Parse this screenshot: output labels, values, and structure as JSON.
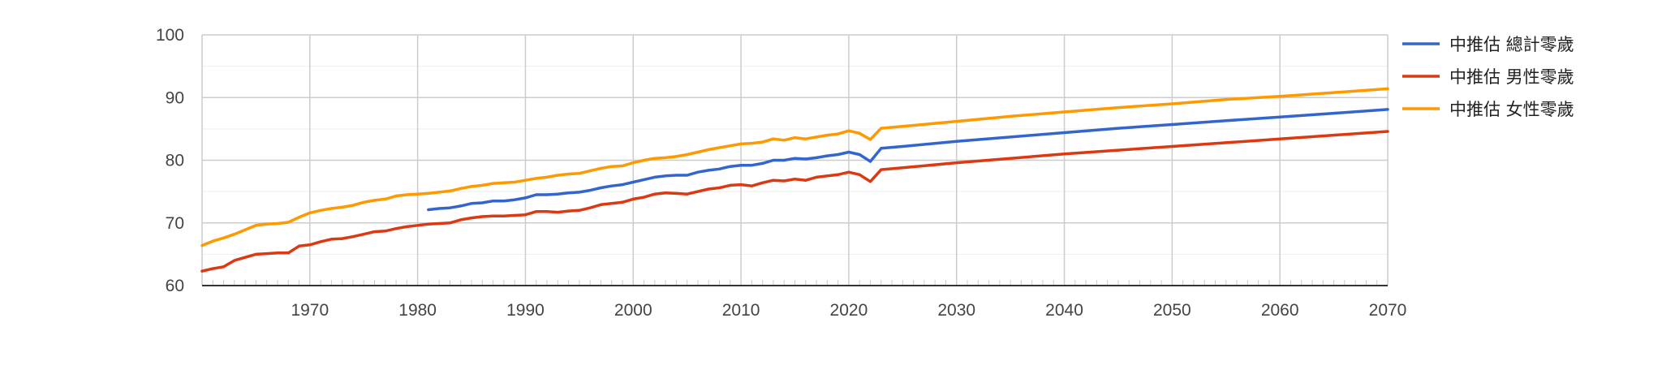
{
  "chart_data": {
    "type": "line",
    "title": "",
    "xlabel": "",
    "ylabel": "",
    "xlim": [
      1960,
      2070
    ],
    "ylim": [
      60,
      100
    ],
    "x_ticks": [
      1970,
      1980,
      1990,
      2000,
      2010,
      2020,
      2030,
      2040,
      2050,
      2060,
      2070
    ],
    "x_tick_labels": [
      "1970",
      "1980",
      "1990",
      "2000",
      "2010",
      "2020",
      "2030",
      "2040",
      "2050",
      "2060",
      "2070"
    ],
    "y_ticks": [
      60,
      70,
      80,
      90,
      100
    ],
    "y_tick_labels": [
      "60",
      "70",
      "80",
      "90",
      "100"
    ],
    "grid": true,
    "legend_position": "right",
    "series": [
      {
        "name": "中推估 總計零歲",
        "color": "#3366cc",
        "x": [
          1981,
          1982,
          1983,
          1984,
          1985,
          1986,
          1987,
          1988,
          1989,
          1990,
          1991,
          1992,
          1993,
          1994,
          1995,
          1996,
          1997,
          1998,
          1999,
          2000,
          2001,
          2002,
          2003,
          2004,
          2005,
          2006,
          2007,
          2008,
          2009,
          2010,
          2011,
          2012,
          2013,
          2014,
          2015,
          2016,
          2017,
          2018,
          2019,
          2020,
          2021,
          2022,
          2023,
          2025,
          2030,
          2035,
          2040,
          2045,
          2050,
          2055,
          2060,
          2065,
          2070
        ],
        "y": [
          72.1,
          72.3,
          72.4,
          72.7,
          73.1,
          73.2,
          73.5,
          73.5,
          73.7,
          74.0,
          74.5,
          74.5,
          74.6,
          74.8,
          74.9,
          75.2,
          75.6,
          75.9,
          76.1,
          76.5,
          76.9,
          77.3,
          77.5,
          77.6,
          77.6,
          78.1,
          78.4,
          78.6,
          79.0,
          79.2,
          79.2,
          79.5,
          80.0,
          80.0,
          80.3,
          80.2,
          80.4,
          80.7,
          80.9,
          81.3,
          80.9,
          79.8,
          81.9,
          82.2,
          83.0,
          83.7,
          84.4,
          85.1,
          85.7,
          86.3,
          86.9,
          87.5,
          88.1
        ]
      },
      {
        "name": "中推估 男性零歲",
        "color": "#dc3912",
        "x": [
          1960,
          1961,
          1962,
          1963,
          1964,
          1965,
          1966,
          1967,
          1968,
          1969,
          1970,
          1971,
          1972,
          1973,
          1974,
          1975,
          1976,
          1977,
          1978,
          1979,
          1980,
          1981,
          1982,
          1983,
          1984,
          1985,
          1986,
          1987,
          1988,
          1989,
          1990,
          1991,
          1992,
          1993,
          1994,
          1995,
          1996,
          1997,
          1998,
          1999,
          2000,
          2001,
          2002,
          2003,
          2004,
          2005,
          2006,
          2007,
          2008,
          2009,
          2010,
          2011,
          2012,
          2013,
          2014,
          2015,
          2016,
          2017,
          2018,
          2019,
          2020,
          2021,
          2022,
          2023,
          2025,
          2030,
          2035,
          2040,
          2045,
          2050,
          2055,
          2060,
          2065,
          2070
        ],
        "y": [
          62.3,
          62.7,
          63.0,
          64.0,
          64.5,
          65.0,
          65.1,
          65.2,
          65.2,
          66.3,
          66.5,
          67.0,
          67.4,
          67.5,
          67.8,
          68.2,
          68.6,
          68.7,
          69.1,
          69.4,
          69.6,
          69.8,
          69.9,
          70.0,
          70.5,
          70.8,
          71.0,
          71.1,
          71.1,
          71.2,
          71.3,
          71.8,
          71.8,
          71.7,
          71.9,
          72.0,
          72.4,
          72.9,
          73.1,
          73.3,
          73.8,
          74.1,
          74.6,
          74.8,
          74.7,
          74.6,
          75.0,
          75.4,
          75.6,
          76.0,
          76.1,
          75.9,
          76.4,
          76.8,
          76.7,
          77.0,
          76.8,
          77.3,
          77.5,
          77.7,
          78.1,
          77.7,
          76.6,
          78.5,
          78.8,
          79.6,
          80.3,
          81.0,
          81.6,
          82.2,
          82.8,
          83.4,
          84.0,
          84.6
        ]
      },
      {
        "name": "中推估 女性零歲",
        "color": "#ff9900",
        "x": [
          1960,
          1961,
          1962,
          1963,
          1964,
          1965,
          1966,
          1967,
          1968,
          1969,
          1970,
          1971,
          1972,
          1973,
          1974,
          1975,
          1976,
          1977,
          1978,
          1979,
          1980,
          1981,
          1982,
          1983,
          1984,
          1985,
          1986,
          1987,
          1988,
          1989,
          1990,
          1991,
          1992,
          1993,
          1994,
          1995,
          1996,
          1997,
          1998,
          1999,
          2000,
          2001,
          2002,
          2003,
          2004,
          2005,
          2006,
          2007,
          2008,
          2009,
          2010,
          2011,
          2012,
          2013,
          2014,
          2015,
          2016,
          2017,
          2018,
          2019,
          2020,
          2021,
          2022,
          2023,
          2025,
          2030,
          2035,
          2040,
          2045,
          2050,
          2055,
          2060,
          2065,
          2070
        ],
        "y": [
          66.4,
          67.1,
          67.6,
          68.2,
          68.9,
          69.6,
          69.8,
          69.9,
          70.1,
          70.9,
          71.6,
          72.0,
          72.3,
          72.5,
          72.8,
          73.3,
          73.6,
          73.8,
          74.3,
          74.5,
          74.6,
          74.7,
          74.9,
          75.1,
          75.5,
          75.8,
          76.0,
          76.3,
          76.4,
          76.5,
          76.8,
          77.1,
          77.3,
          77.6,
          77.8,
          77.9,
          78.3,
          78.7,
          79.0,
          79.1,
          79.6,
          80.0,
          80.3,
          80.4,
          80.6,
          80.9,
          81.3,
          81.7,
          82.0,
          82.3,
          82.6,
          82.7,
          82.9,
          83.4,
          83.2,
          83.6,
          83.4,
          83.7,
          84.0,
          84.2,
          84.7,
          84.3,
          83.3,
          85.1,
          85.4,
          86.2,
          87.0,
          87.7,
          88.4,
          89.0,
          89.7,
          90.2,
          90.8,
          91.4
        ]
      }
    ]
  }
}
